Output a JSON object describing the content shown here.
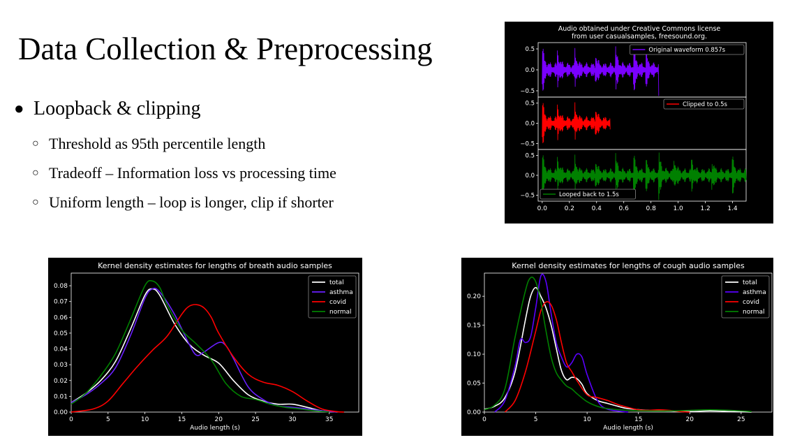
{
  "slide": {
    "title": "Data Collection & Preprocessing",
    "bullets": [
      {
        "text": "Loopback & clipping",
        "bullet_icon": "filled-circle-icon"
      }
    ],
    "sub_bullets": [
      {
        "text": "Threshold as 95th percentile length",
        "bullet_icon": "hollow-circle-icon"
      },
      {
        "text": "Tradeoff – Information loss vs processing time",
        "bullet_icon": "hollow-circle-icon"
      },
      {
        "text": "Uniform length – loop is longer, clip if shorter",
        "bullet_icon": "hollow-circle-icon"
      }
    ]
  },
  "chart_data": [
    {
      "type": "line",
      "subtype": "waveform-stack",
      "title_lines": [
        "Audio obtained under Creative Commons license",
        "from user casualsamples, freesound.org."
      ],
      "xlim": [
        -0.03,
        1.5
      ],
      "xticks": [
        "0.0",
        "0.2",
        "0.4",
        "0.6",
        "0.8",
        "1.0",
        "1.2",
        "1.4"
      ],
      "xtick_values": [
        0.0,
        0.2,
        0.4,
        0.6,
        0.8,
        1.0,
        1.2,
        1.4
      ],
      "panels": [
        {
          "label": "Original waveform 0.857s",
          "color": "#7a00ff",
          "duration": 0.857,
          "ylim": [
            -0.65,
            0.65
          ],
          "yticks": [
            "0.5",
            "0.0",
            "−0.5"
          ],
          "ytick_values": [
            0.5,
            0.0,
            -0.5
          ],
          "legend": "top-right"
        },
        {
          "label": "Clipped to 0.5s",
          "color": "#ff0000",
          "duration": 0.5,
          "ylim": [
            -0.65,
            0.65
          ],
          "yticks": [
            "0.5",
            "0.0",
            "−0.5"
          ],
          "ytick_values": [
            0.5,
            0.0,
            -0.5
          ],
          "legend": "top-right"
        },
        {
          "label": "Looped back to 1.5s",
          "color": "#008000",
          "duration": 1.5,
          "ylim": [
            -0.65,
            0.65
          ],
          "yticks": [
            "0.5",
            "0.0",
            "−0.5"
          ],
          "ytick_values": [
            0.5,
            0.0,
            -0.5
          ],
          "legend": "bottom-left"
        }
      ]
    },
    {
      "type": "line",
      "subtype": "kde",
      "title": "Kernel density estimates for lengths of breath audio samples",
      "xlabel": "Audio length (s)",
      "xlim": [
        0,
        39
      ],
      "ylim": [
        0,
        0.088
      ],
      "xticks": [
        "0",
        "5",
        "10",
        "15",
        "20",
        "25",
        "30",
        "35"
      ],
      "xtick_values": [
        0,
        5,
        10,
        15,
        20,
        25,
        30,
        35
      ],
      "yticks": [
        "0.00",
        "0.01",
        "0.02",
        "0.03",
        "0.04",
        "0.05",
        "0.06",
        "0.07",
        "0.08"
      ],
      "ytick_values": [
        0,
        0.01,
        0.02,
        0.03,
        0.04,
        0.05,
        0.06,
        0.07,
        0.08
      ],
      "legend": "top-right",
      "series": [
        {
          "name": "total",
          "color": "#ffffff",
          "x": [
            0,
            2,
            4,
            6,
            8,
            10,
            11,
            12,
            14,
            16,
            18,
            20,
            22,
            24,
            26,
            28,
            30,
            32,
            34,
            36
          ],
          "values": [
            0.006,
            0.012,
            0.02,
            0.032,
            0.052,
            0.074,
            0.078,
            0.074,
            0.056,
            0.043,
            0.036,
            0.031,
            0.02,
            0.011,
            0.007,
            0.005,
            0.005,
            0.003,
            0.0008,
            0.0001
          ]
        },
        {
          "name": "asthma",
          "color": "#6a1fff",
          "x": [
            0,
            2,
            4,
            6,
            8,
            10,
            11,
            12,
            14,
            16,
            17,
            18,
            20,
            21,
            22,
            24,
            26,
            28,
            30,
            32,
            34,
            36
          ],
          "values": [
            0.006,
            0.011,
            0.018,
            0.028,
            0.048,
            0.072,
            0.078,
            0.076,
            0.062,
            0.043,
            0.036,
            0.038,
            0.044,
            0.042,
            0.034,
            0.016,
            0.008,
            0.004,
            0.003,
            0.002,
            0.0008,
            0.0001
          ]
        },
        {
          "name": "covid",
          "color": "#ff0000",
          "x": [
            0,
            3,
            5,
            7,
            9,
            11,
            13,
            15,
            16,
            17,
            18,
            19,
            20,
            22,
            24,
            26,
            28,
            30,
            32,
            34,
            36,
            37
          ],
          "values": [
            0.0,
            0.002,
            0.007,
            0.018,
            0.029,
            0.039,
            0.048,
            0.062,
            0.067,
            0.068,
            0.066,
            0.06,
            0.05,
            0.035,
            0.024,
            0.019,
            0.017,
            0.013,
            0.007,
            0.002,
            0.0003,
            0.0
          ]
        },
        {
          "name": "normal",
          "color": "#008000",
          "x": [
            0,
            2,
            4,
            6,
            8,
            10,
            11,
            12,
            13,
            15,
            17,
            19,
            21,
            23,
            25,
            27,
            29,
            31,
            33,
            35
          ],
          "values": [
            0.005,
            0.012,
            0.023,
            0.037,
            0.058,
            0.08,
            0.083,
            0.079,
            0.068,
            0.052,
            0.043,
            0.033,
            0.018,
            0.01,
            0.008,
            0.005,
            0.003,
            0.002,
            0.0008,
            0.0001
          ]
        }
      ]
    },
    {
      "type": "line",
      "subtype": "kde",
      "title": "Kernel density estimates for lengths of cough audio samples",
      "xlabel": "Audio length (s)",
      "xlim": [
        0,
        28
      ],
      "ylim": [
        0,
        0.24
      ],
      "xticks": [
        "0",
        "5",
        "10",
        "15",
        "20",
        "25"
      ],
      "xtick_values": [
        0,
        5,
        10,
        15,
        20,
        25
      ],
      "yticks": [
        "0.00",
        "0.05",
        "0.10",
        "0.15",
        "0.20"
      ],
      "ytick_values": [
        0,
        0.05,
        0.1,
        0.15,
        0.2
      ],
      "legend": "top-right",
      "series": [
        {
          "name": "total",
          "color": "#ffffff",
          "x": [
            0,
            1,
            2,
            3,
            4,
            4.5,
            5,
            5.5,
            6,
            6.5,
            7,
            7.5,
            8,
            8.5,
            9,
            9.5,
            10,
            11,
            12,
            13,
            14,
            16,
            18,
            20,
            22,
            24,
            26
          ],
          "values": [
            0.005,
            0.01,
            0.025,
            0.07,
            0.16,
            0.2,
            0.215,
            0.2,
            0.18,
            0.15,
            0.11,
            0.072,
            0.056,
            0.06,
            0.058,
            0.048,
            0.032,
            0.02,
            0.015,
            0.01,
            0.006,
            0.003,
            0.002,
            0.001,
            0.002,
            0.001,
            0.0
          ]
        },
        {
          "name": "asthma",
          "color": "#5a00ff",
          "x": [
            1,
            2,
            3,
            3.5,
            4,
            4.5,
            5,
            5.5,
            6,
            6.5,
            7,
            7.5,
            8,
            8.5,
            9,
            9.5,
            10,
            11,
            12,
            14
          ],
          "values": [
            0.0,
            0.02,
            0.08,
            0.125,
            0.12,
            0.13,
            0.18,
            0.235,
            0.225,
            0.17,
            0.12,
            0.095,
            0.078,
            0.085,
            0.1,
            0.095,
            0.065,
            0.02,
            0.005,
            0.0
          ]
        },
        {
          "name": "covid",
          "color": "#ff0000",
          "x": [
            2,
            3,
            4,
            5,
            5.5,
            6,
            6.5,
            7,
            7.5,
            8,
            8.5,
            9,
            10,
            11,
            12,
            13,
            14,
            15,
            16,
            17,
            18,
            19,
            20
          ],
          "values": [
            0.0,
            0.02,
            0.07,
            0.14,
            0.175,
            0.19,
            0.185,
            0.16,
            0.12,
            0.085,
            0.07,
            0.055,
            0.03,
            0.025,
            0.02,
            0.013,
            0.008,
            0.004,
            0.003,
            0.004,
            0.003,
            0.001,
            0.0
          ]
        },
        {
          "name": "normal",
          "color": "#008000",
          "x": [
            0,
            1,
            2,
            3,
            4,
            4.5,
            5,
            5.5,
            6,
            6.5,
            7,
            7.5,
            8,
            8.5,
            9,
            10,
            11,
            12,
            14,
            16,
            18,
            20,
            22,
            24,
            26
          ],
          "values": [
            0.004,
            0.012,
            0.04,
            0.13,
            0.21,
            0.232,
            0.225,
            0.19,
            0.14,
            0.095,
            0.068,
            0.055,
            0.045,
            0.04,
            0.032,
            0.018,
            0.01,
            0.006,
            0.003,
            0.002,
            0.002,
            0.003,
            0.004,
            0.003,
            0.001
          ]
        }
      ]
    }
  ]
}
